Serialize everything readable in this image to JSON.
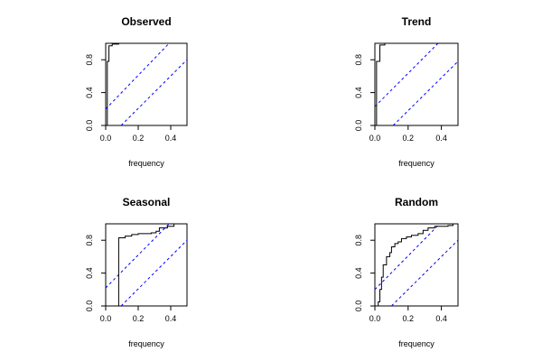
{
  "chart_data": [
    {
      "type": "line",
      "title": "Observed",
      "xlabel": "frequency",
      "ylabel": "",
      "xlim": [
        0,
        0.5
      ],
      "ylim": [
        0,
        1
      ],
      "xticks": [
        "0.0",
        "0.2",
        "0.4"
      ],
      "yticks": [
        "0.0",
        "0.4",
        "0.8"
      ],
      "grid": false,
      "step": [
        [
          0,
          0
        ],
        [
          0.01,
          0
        ],
        [
          0.01,
          0.78
        ],
        [
          0.02,
          0.78
        ],
        [
          0.02,
          0.97
        ],
        [
          0.04,
          0.97
        ],
        [
          0.04,
          0.99
        ],
        [
          0.08,
          0.99
        ],
        [
          0.08,
          1
        ],
        [
          0.5,
          1
        ]
      ],
      "bands": [
        {
          "color": "#0000ff",
          "style": "dashed",
          "points": [
            [
              0,
              0.2
            ],
            [
              0.39,
              1
            ]
          ]
        },
        {
          "color": "#0000ff",
          "style": "dashed",
          "points": [
            [
              0.095,
              0
            ],
            [
              0.5,
              0.8
            ]
          ]
        }
      ]
    },
    {
      "type": "line",
      "title": "Trend",
      "xlabel": "frequency",
      "ylabel": "",
      "xlim": [
        0,
        0.5
      ],
      "ylim": [
        0,
        1
      ],
      "xticks": [
        "0.0",
        "0.2",
        "0.4"
      ],
      "yticks": [
        "0.0",
        "0.4",
        "0.8"
      ],
      "grid": false,
      "step": [
        [
          0,
          0
        ],
        [
          0.01,
          0
        ],
        [
          0.01,
          0.78
        ],
        [
          0.03,
          0.78
        ],
        [
          0.03,
          0.98
        ],
        [
          0.06,
          0.98
        ],
        [
          0.06,
          1
        ],
        [
          0.5,
          1
        ]
      ],
      "bands": [
        {
          "color": "#0000ff",
          "style": "dashed",
          "points": [
            [
              0,
              0.23
            ],
            [
              0.38,
              1
            ]
          ]
        },
        {
          "color": "#0000ff",
          "style": "dashed",
          "points": [
            [
              0.11,
              0
            ],
            [
              0.5,
              0.78
            ]
          ]
        }
      ]
    },
    {
      "type": "line",
      "title": "Seasonal",
      "xlabel": "frequency",
      "ylabel": "",
      "xlim": [
        0,
        0.5
      ],
      "ylim": [
        0,
        1
      ],
      "xticks": [
        "0.0",
        "0.2",
        "0.4"
      ],
      "yticks": [
        "0.0",
        "0.4",
        "0.8"
      ],
      "grid": false,
      "step": [
        [
          0,
          0
        ],
        [
          0.08,
          0
        ],
        [
          0.08,
          0.83
        ],
        [
          0.12,
          0.83
        ],
        [
          0.12,
          0.85
        ],
        [
          0.16,
          0.85
        ],
        [
          0.16,
          0.87
        ],
        [
          0.2,
          0.87
        ],
        [
          0.2,
          0.88
        ],
        [
          0.28,
          0.88
        ],
        [
          0.28,
          0.89
        ],
        [
          0.31,
          0.89
        ],
        [
          0.31,
          0.91
        ],
        [
          0.33,
          0.91
        ],
        [
          0.33,
          0.95
        ],
        [
          0.38,
          0.95
        ],
        [
          0.38,
          0.97
        ],
        [
          0.42,
          0.97
        ],
        [
          0.42,
          1
        ],
        [
          0.5,
          1
        ]
      ],
      "bands": [
        {
          "color": "#0000ff",
          "style": "dashed",
          "points": [
            [
              0,
              0.22
            ],
            [
              0.39,
              1
            ]
          ]
        },
        {
          "color": "#0000ff",
          "style": "dashed",
          "points": [
            [
              0.095,
              0
            ],
            [
              0.5,
              0.8
            ]
          ]
        }
      ]
    },
    {
      "type": "line",
      "title": "Random",
      "xlabel": "frequency",
      "ylabel": "",
      "xlim": [
        0,
        0.5
      ],
      "ylim": [
        0,
        1
      ],
      "xticks": [
        "0.0",
        "0.2",
        "0.4"
      ],
      "yticks": [
        "0.0",
        "0.4",
        "0.8"
      ],
      "grid": false,
      "step": [
        [
          0,
          0
        ],
        [
          0.02,
          0
        ],
        [
          0.02,
          0.05
        ],
        [
          0.03,
          0.05
        ],
        [
          0.03,
          0.2
        ],
        [
          0.04,
          0.2
        ],
        [
          0.04,
          0.35
        ],
        [
          0.05,
          0.35
        ],
        [
          0.05,
          0.5
        ],
        [
          0.07,
          0.5
        ],
        [
          0.07,
          0.6
        ],
        [
          0.09,
          0.6
        ],
        [
          0.09,
          0.65
        ],
        [
          0.1,
          0.65
        ],
        [
          0.1,
          0.72
        ],
        [
          0.12,
          0.72
        ],
        [
          0.12,
          0.76
        ],
        [
          0.14,
          0.76
        ],
        [
          0.14,
          0.78
        ],
        [
          0.16,
          0.78
        ],
        [
          0.16,
          0.82
        ],
        [
          0.19,
          0.82
        ],
        [
          0.19,
          0.84
        ],
        [
          0.22,
          0.84
        ],
        [
          0.22,
          0.86
        ],
        [
          0.26,
          0.86
        ],
        [
          0.26,
          0.88
        ],
        [
          0.29,
          0.88
        ],
        [
          0.29,
          0.92
        ],
        [
          0.32,
          0.92
        ],
        [
          0.32,
          0.95
        ],
        [
          0.36,
          0.95
        ],
        [
          0.36,
          0.97
        ],
        [
          0.44,
          0.97
        ],
        [
          0.44,
          0.98
        ],
        [
          0.47,
          0.98
        ],
        [
          0.47,
          1
        ],
        [
          0.5,
          1
        ]
      ],
      "bands": [
        {
          "color": "#0000ff",
          "style": "dashed",
          "points": [
            [
              0,
              0.2
            ],
            [
              0.39,
              1
            ]
          ]
        },
        {
          "color": "#0000ff",
          "style": "dashed",
          "points": [
            [
              0.1,
              0
            ],
            [
              0.5,
              0.8
            ]
          ]
        }
      ]
    }
  ]
}
